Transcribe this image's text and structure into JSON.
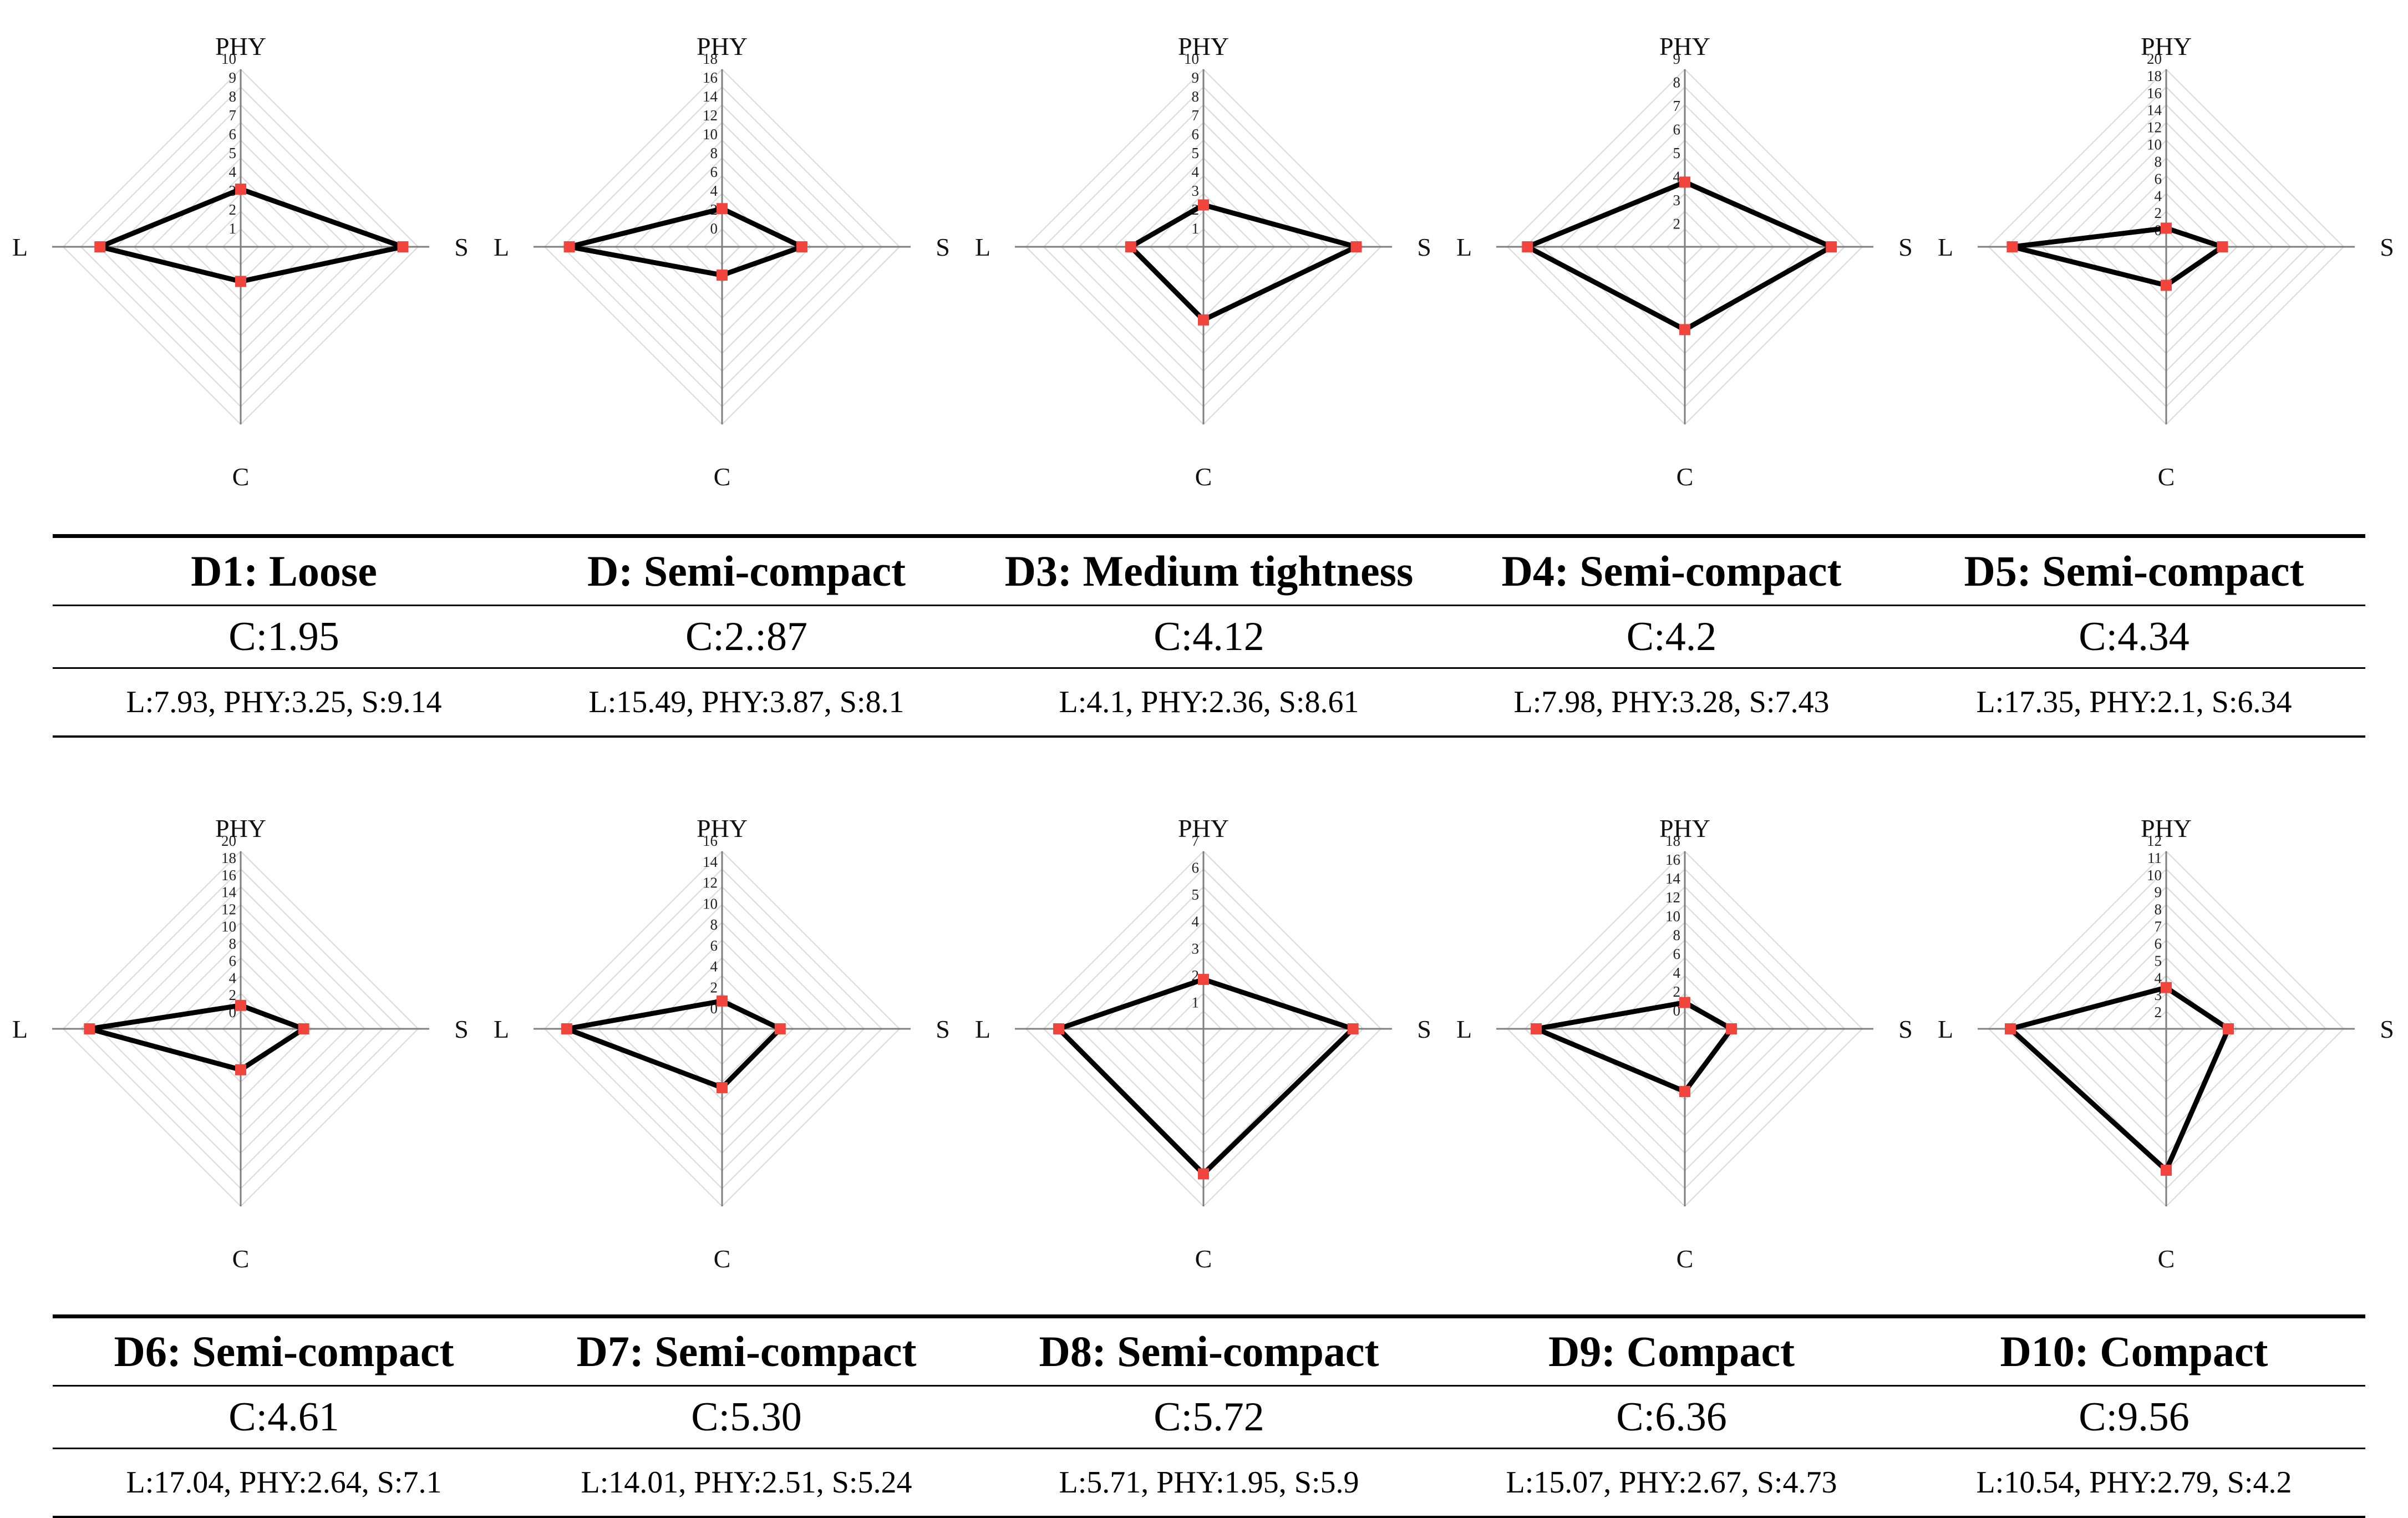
{
  "colors": {
    "polygon": "#000000",
    "marker": "#f0443d",
    "grid": "#d9d9d9",
    "axis": "#7f7f7f"
  },
  "chart_data": [
    {
      "type": "radar",
      "id": "D1",
      "title": "D1: Loose",
      "axes": [
        "PHY",
        "S",
        "C",
        "L"
      ],
      "values": {
        "PHY": 3.25,
        "S": 9.14,
        "C": 1.95,
        "L": 7.93
      },
      "ylim": [
        0,
        10
      ],
      "tick_labels": [
        "1",
        "2",
        "3",
        "4",
        "5",
        "6",
        "7",
        "8",
        "9",
        "10"
      ]
    },
    {
      "type": "radar",
      "id": "D2",
      "title": "D: Semi-compact",
      "axes": [
        "PHY",
        "S",
        "C",
        "L"
      ],
      "values": {
        "PHY": 3.87,
        "S": 8.1,
        "C": 2.87,
        "L": 15.49
      },
      "ylim": [
        0,
        18
      ],
      "tick_labels": [
        "0",
        "2",
        "4",
        "6",
        "8",
        "10",
        "12",
        "14",
        "16",
        "18"
      ]
    },
    {
      "type": "radar",
      "id": "D3",
      "title": "D3: Medium tightness",
      "axes": [
        "PHY",
        "S",
        "C",
        "L"
      ],
      "values": {
        "PHY": 2.36,
        "S": 8.61,
        "C": 4.12,
        "L": 4.1
      },
      "ylim": [
        0,
        10
      ],
      "tick_labels": [
        "1",
        "2",
        "3",
        "4",
        "5",
        "6",
        "7",
        "8",
        "9",
        "10"
      ]
    },
    {
      "type": "radar",
      "id": "D4",
      "title": "D4: Semi-compact",
      "axes": [
        "PHY",
        "S",
        "C",
        "L"
      ],
      "values": {
        "PHY": 3.28,
        "S": 7.43,
        "C": 4.2,
        "L": 7.98
      },
      "ylim": [
        0,
        9
      ],
      "tick_labels": [
        "2",
        "3",
        "4",
        "5",
        "6",
        "7",
        "8",
        "9"
      ]
    },
    {
      "type": "radar",
      "id": "D5",
      "title": "D5: Semi-compact",
      "axes": [
        "PHY",
        "S",
        "C",
        "L"
      ],
      "values": {
        "PHY": 2.1,
        "S": 6.34,
        "C": 4.34,
        "L": 17.35
      },
      "ylim": [
        0,
        20
      ],
      "tick_labels": [
        "0",
        "2",
        "4",
        "6",
        "8",
        "10",
        "12",
        "14",
        "16",
        "18",
        "20"
      ]
    },
    {
      "type": "radar",
      "id": "D6",
      "title": "D6: Semi-compact",
      "axes": [
        "PHY",
        "S",
        "C",
        "L"
      ],
      "values": {
        "PHY": 2.64,
        "S": 7.1,
        "C": 4.61,
        "L": 17.04
      },
      "ylim": [
        0,
        20
      ],
      "tick_labels": [
        "0",
        "2",
        "4",
        "6",
        "8",
        "10",
        "12",
        "14",
        "16",
        "18",
        "20"
      ]
    },
    {
      "type": "radar",
      "id": "D7",
      "title": "D7: Semi-compact",
      "axes": [
        "PHY",
        "S",
        "C",
        "L"
      ],
      "values": {
        "PHY": 2.51,
        "S": 5.24,
        "C": 5.3,
        "L": 14.01
      },
      "ylim": [
        0,
        16
      ],
      "tick_labels": [
        "0",
        "2",
        "4",
        "6",
        "8",
        "10",
        "12",
        "14",
        "16"
      ]
    },
    {
      "type": "radar",
      "id": "D8",
      "title": "D8: Semi-compact",
      "axes": [
        "PHY",
        "S",
        "C",
        "L"
      ],
      "values": {
        "PHY": 1.95,
        "S": 5.9,
        "C": 5.72,
        "L": 5.71
      },
      "ylim": [
        0,
        7
      ],
      "tick_labels": [
        "1",
        "2",
        "3",
        "4",
        "5",
        "6",
        "7"
      ]
    },
    {
      "type": "radar",
      "id": "D9",
      "title": "D9: Compact",
      "axes": [
        "PHY",
        "S",
        "C",
        "L"
      ],
      "values": {
        "PHY": 2.67,
        "S": 4.73,
        "C": 6.36,
        "L": 15.07
      },
      "ylim": [
        0,
        18
      ],
      "tick_labels": [
        "0",
        "2",
        "4",
        "6",
        "8",
        "10",
        "12",
        "14",
        "16",
        "18"
      ]
    },
    {
      "type": "radar",
      "id": "D10",
      "title": "D10: Compact",
      "axes": [
        "PHY",
        "S",
        "C",
        "L"
      ],
      "values": {
        "PHY": 2.79,
        "S": 4.2,
        "C": 9.56,
        "L": 10.54
      },
      "ylim": [
        0,
        12
      ],
      "tick_labels": [
        "2",
        "3",
        "4",
        "5",
        "6",
        "7",
        "8",
        "9",
        "10",
        "11",
        "12"
      ]
    }
  ],
  "tables": [
    {
      "titles": [
        "D1: Loose",
        "D: Semi-compact",
        "D3: Medium tightness",
        "D4: Semi-compact",
        "D5: Semi-compact"
      ],
      "c_values": [
        "C:1.95",
        "C:2.:87",
        "C:4.12",
        "C:4.2",
        "C:4.34"
      ],
      "components": [
        "L:7.93, PHY:3.25, S:9.14",
        "L:15.49, PHY:3.87, S:8.1",
        "L:4.1, PHY:2.36, S:8.61",
        "L:7.98, PHY:3.28, S:7.43",
        "L:17.35, PHY:2.1, S:6.34"
      ]
    },
    {
      "titles": [
        "D6: Semi-compact",
        "D7: Semi-compact",
        "D8: Semi-compact",
        "D9: Compact",
        "D10: Compact"
      ],
      "c_values": [
        "C:4.61",
        "C:5.30",
        "C:5.72",
        "C:6.36",
        "C:9.56"
      ],
      "components": [
        "L:17.04, PHY:2.64, S:7.1",
        "L:14.01, PHY:2.51, S:5.24",
        "L:5.71, PHY:1.95, S:5.9",
        "L:15.07, PHY:2.67, S:4.73",
        "L:10.54, PHY:2.79, S:4.2"
      ]
    }
  ]
}
